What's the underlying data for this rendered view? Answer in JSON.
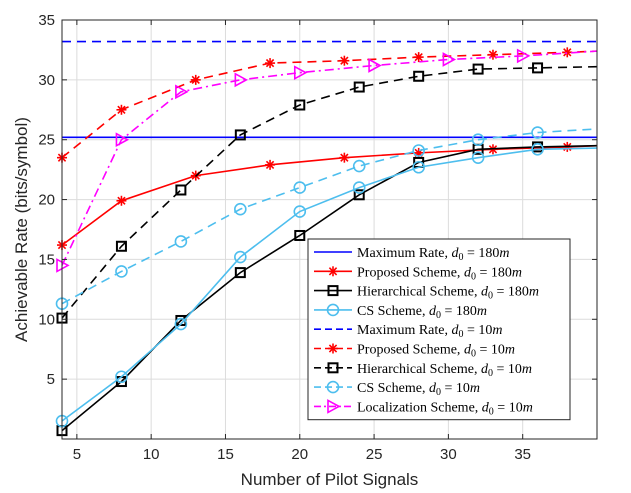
{
  "chart_data": {
    "type": "line",
    "title": "",
    "xlabel": "Number of Pilot Signals",
    "ylabel": "Achievable Rate (bits/symbol)",
    "xlim": [
      4,
      40
    ],
    "ylim": [
      0,
      35
    ],
    "xticks": [
      5,
      10,
      15,
      20,
      25,
      30,
      35
    ],
    "yticks": [
      5,
      10,
      15,
      20,
      25,
      30,
      35
    ],
    "grid": true,
    "legend_position": "bottom-right",
    "colors": {
      "blue": "#0000ff",
      "red": "#ff0000",
      "black": "#000000",
      "cyan": "#4dbeee",
      "magenta": "#ff00ff",
      "grid": "#dcdcdc",
      "axis": "#262626"
    },
    "series": [
      {
        "name": "Maximum Rate, ",
        "sub_value": "180",
        "color": "blue",
        "dash": "solid",
        "marker": "none",
        "x": [
          4,
          40
        ],
        "y": [
          25.2,
          25.2
        ]
      },
      {
        "name": "Proposed Scheme, ",
        "sub_value": "180",
        "color": "red",
        "dash": "solid",
        "marker": "asterisk",
        "x": [
          4,
          8,
          13,
          18,
          23,
          28,
          33,
          38,
          40
        ],
        "y": [
          16.2,
          19.9,
          22.0,
          22.9,
          23.5,
          23.9,
          24.2,
          24.4,
          24.5
        ]
      },
      {
        "name": "Hierarchical Scheme, ",
        "sub_value": "180",
        "color": "black",
        "dash": "solid",
        "marker": "square",
        "x": [
          4,
          8,
          12,
          16,
          20,
          24,
          28,
          32,
          36,
          40
        ],
        "y": [
          0.7,
          4.8,
          9.9,
          13.9,
          17.0,
          20.4,
          23.1,
          24.2,
          24.4,
          24.5
        ]
      },
      {
        "name": "CS Scheme, ",
        "sub_value": "180",
        "color": "cyan",
        "dash": "solid",
        "marker": "circle",
        "x": [
          4,
          8,
          12,
          16,
          20,
          24,
          28,
          32,
          36,
          40
        ],
        "y": [
          1.5,
          5.2,
          9.6,
          15.2,
          19.0,
          21.0,
          22.7,
          23.5,
          24.2,
          24.3
        ]
      },
      {
        "name": "Maximum Rate, ",
        "sub_value": "10",
        "color": "blue",
        "dash": "dashed",
        "marker": "none",
        "x": [
          4,
          40
        ],
        "y": [
          33.2,
          33.2
        ]
      },
      {
        "name": "Proposed Scheme, ",
        "sub_value": "10",
        "color": "red",
        "dash": "dashed",
        "marker": "asterisk",
        "x": [
          4,
          8,
          13,
          18,
          23,
          28,
          33,
          38,
          40
        ],
        "y": [
          23.5,
          27.5,
          30.0,
          31.4,
          31.6,
          31.9,
          32.1,
          32.3,
          32.4
        ]
      },
      {
        "name": "Hierarchical Scheme, ",
        "sub_value": "10",
        "color": "black",
        "dash": "dashed",
        "marker": "square",
        "x": [
          4,
          8,
          12,
          16,
          20,
          24,
          28,
          32,
          36,
          40
        ],
        "y": [
          10.1,
          16.1,
          20.8,
          25.4,
          27.9,
          29.4,
          30.3,
          30.9,
          31.0,
          31.1
        ]
      },
      {
        "name": "CS Scheme, ",
        "sub_value": "10",
        "color": "cyan",
        "dash": "dashed",
        "marker": "circle",
        "x": [
          4,
          8,
          12,
          16,
          20,
          24,
          28,
          32,
          36,
          40
        ],
        "y": [
          11.3,
          14.0,
          16.5,
          19.2,
          21.0,
          22.8,
          24.1,
          25.0,
          25.6,
          25.9
        ]
      },
      {
        "name": "Localization Scheme, ",
        "sub_value": "10",
        "color": "magenta",
        "dash": "dashdot",
        "marker": "triangle-right",
        "x": [
          4,
          8,
          12,
          16,
          20,
          25,
          30,
          35,
          40
        ],
        "y": [
          14.5,
          25.0,
          29.0,
          30.0,
          30.6,
          31.2,
          31.7,
          32.0,
          32.4
        ]
      }
    ]
  }
}
